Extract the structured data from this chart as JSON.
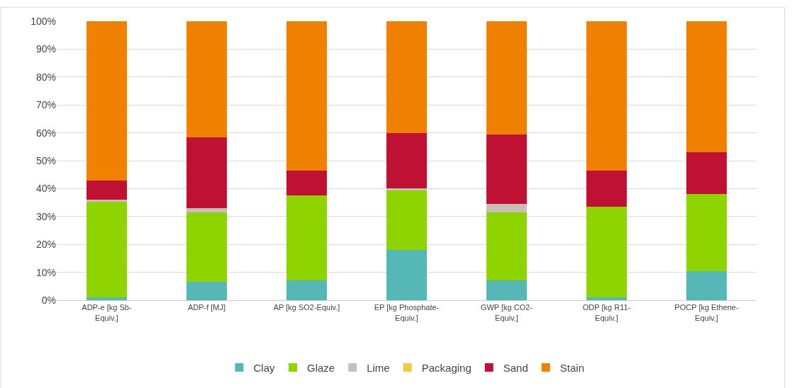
{
  "chart_data": {
    "type": "bar",
    "stacked": true,
    "categories": [
      "ADP-e [kg Sb-\nEquiv.]",
      "ADP-f [MJ]",
      "AP [kg SO2-Equiv.]",
      "EP [kg Phosphate-\nEquiv.]",
      "GWP [kg CO2-\nEquiv.]",
      "ODP [kg R11-\nEquiv.]",
      "POCP [kg Ethene-\nEquiv.]"
    ],
    "series": [
      {
        "name": "Clay",
        "color": "#56b8b6",
        "values": [
          1,
          6.5,
          7,
          18,
          7,
          1,
          10.5
        ]
      },
      {
        "name": "Glaze",
        "color": "#8fd400",
        "values": [
          34.5,
          25,
          30.5,
          21.5,
          24.5,
          32.5,
          27.5
        ]
      },
      {
        "name": "Lime",
        "color": "#c8bfb6",
        "values": [
          0.5,
          1.5,
          0,
          0.5,
          3,
          0,
          0
        ]
      },
      {
        "name": "Packaging",
        "color": "#f5c842",
        "values": [
          0,
          0,
          0,
          0,
          0,
          0,
          0
        ]
      },
      {
        "name": "Sand",
        "color": "#bf1133",
        "values": [
          7,
          25.5,
          9,
          20,
          25,
          13,
          15
        ]
      },
      {
        "name": "Stain",
        "color": "#f08000",
        "values": [
          57,
          41.5,
          53.5,
          40,
          40.5,
          53.5,
          47
        ]
      }
    ],
    "ylim": [
      0,
      100
    ],
    "yticks": [
      {
        "value": 0,
        "label": "0%"
      },
      {
        "value": 10,
        "label": "10%"
      },
      {
        "value": 20,
        "label": "20%"
      },
      {
        "value": 30,
        "label": "30%"
      },
      {
        "value": 40,
        "label": "40%"
      },
      {
        "value": 50,
        "label": "50%"
      },
      {
        "value": 60,
        "label": "60%"
      },
      {
        "value": 70,
        "label": "70%"
      },
      {
        "value": 80,
        "label": "80%"
      },
      {
        "value": 90,
        "label": "90%"
      },
      {
        "value": 100,
        "label": "100%"
      }
    ],
    "grid": "y",
    "legend": "bottom"
  }
}
